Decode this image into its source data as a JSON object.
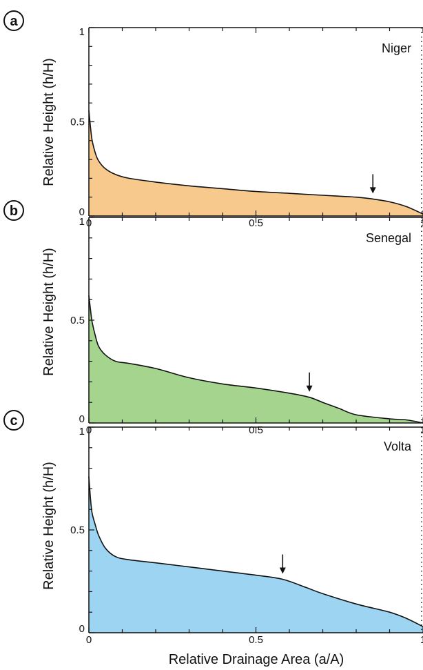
{
  "figure": {
    "xlabel": "Relative Drainage Area (a/A)",
    "ylabel": "Relative Height (h/H)"
  },
  "chart_data": [
    {
      "panel": "a",
      "type": "area",
      "annotation": "Niger",
      "color": "#F7C98C",
      "xlabel": "",
      "ylabel": "Relative Height (h/H)",
      "xlim": [
        0,
        1
      ],
      "ylim": [
        0,
        1
      ],
      "xticks": [
        "0",
        "0.5",
        "1"
      ],
      "yticks": [
        "0",
        "0.5",
        "1"
      ],
      "x": [
        0,
        0.005,
        0.01,
        0.02,
        0.03,
        0.05,
        0.08,
        0.12,
        0.2,
        0.3,
        0.4,
        0.5,
        0.6,
        0.7,
        0.8,
        0.85,
        0.9,
        0.95,
        1.0
      ],
      "y": [
        0.56,
        0.47,
        0.4,
        0.33,
        0.29,
        0.25,
        0.22,
        0.2,
        0.18,
        0.16,
        0.145,
        0.13,
        0.12,
        0.11,
        0.1,
        0.09,
        0.075,
        0.05,
        0.01
      ],
      "arrow_x": 0.85
    },
    {
      "panel": "b",
      "type": "area",
      "annotation": "Senegal",
      "color": "#A5D48F",
      "xlabel": "",
      "ylabel": "Relative Height (h/H)",
      "xlim": [
        0,
        1
      ],
      "ylim": [
        0,
        1
      ],
      "xticks": [
        "0",
        "0.5",
        "1"
      ],
      "yticks": [
        "0",
        "0.5",
        "1"
      ],
      "x": [
        0,
        0.005,
        0.01,
        0.02,
        0.03,
        0.05,
        0.08,
        0.12,
        0.2,
        0.3,
        0.4,
        0.5,
        0.6,
        0.66,
        0.7,
        0.75,
        0.8,
        0.9,
        0.95,
        1.0
      ],
      "y": [
        0.62,
        0.55,
        0.49,
        0.42,
        0.37,
        0.33,
        0.3,
        0.29,
        0.265,
        0.22,
        0.19,
        0.17,
        0.145,
        0.125,
        0.1,
        0.07,
        0.04,
        0.02,
        0.015,
        0.0
      ],
      "arrow_x": 0.66
    },
    {
      "panel": "c",
      "type": "area",
      "annotation": "Volta",
      "color": "#9DD4F1",
      "xlabel": "Relative Drainage Area (a/A)",
      "ylabel": "Relative Height (h/H)",
      "xlim": [
        0,
        1
      ],
      "ylim": [
        0,
        1
      ],
      "xticks": [
        "0",
        "0.5",
        "1"
      ],
      "yticks": [
        "0",
        "0.5",
        "1"
      ],
      "x": [
        0,
        0.005,
        0.01,
        0.02,
        0.03,
        0.05,
        0.08,
        0.12,
        0.2,
        0.3,
        0.4,
        0.5,
        0.58,
        0.65,
        0.7,
        0.8,
        0.9,
        0.95,
        1.0
      ],
      "y": [
        0.76,
        0.65,
        0.58,
        0.52,
        0.47,
        0.41,
        0.37,
        0.355,
        0.34,
        0.32,
        0.3,
        0.28,
        0.26,
        0.22,
        0.19,
        0.14,
        0.1,
        0.07,
        0.03
      ],
      "arrow_x": 0.58
    }
  ]
}
